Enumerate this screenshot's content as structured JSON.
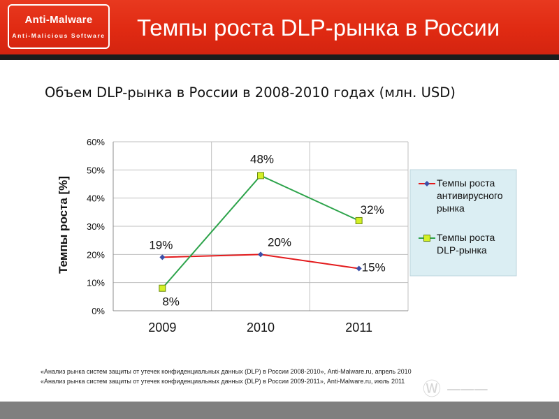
{
  "header": {
    "logo_main": "Anti-Malware",
    "logo_sub": "Anti-Malicious Software",
    "title": "Темпы роста DLP-рынка в России",
    "accent_color": "#e2301a"
  },
  "subtitle": "Объем DLP-рынка в России в 2008-2010 годах (млн. USD)",
  "chart_data": {
    "type": "line",
    "categories": [
      "2009",
      "2010",
      "2011"
    ],
    "ylabel": "Темпы роста [%]",
    "ylim": [
      0,
      60
    ],
    "yticks": [
      "0%",
      "10%",
      "20%",
      "30%",
      "40%",
      "50%",
      "60%"
    ],
    "grid": true,
    "legend_placement": "right",
    "series": [
      {
        "name": "Темпы роста антивирусного рынка",
        "legend_lines": [
          "Темпы роста",
          "антивирусного",
          "рынка"
        ],
        "values": [
          19,
          20,
          15
        ],
        "labels": [
          "19%",
          "20%",
          "15%"
        ],
        "color": "#e31a1c",
        "marker": "diamond",
        "marker_color": "#3b4fa8"
      },
      {
        "name": "Темпы роста DLP-рынка",
        "legend_lines": [
          "Темпы роста",
          "DLP-рынка"
        ],
        "values": [
          8,
          48,
          32
        ],
        "labels": [
          "8%",
          "48%",
          "32%"
        ],
        "color": "#2ca34a",
        "marker": "square",
        "marker_color": "#d4f026"
      }
    ]
  },
  "footnotes": [
    "«Анализ рынка систем защиты от утечек конфиденциальных данных (DLP) в России 2008-2010»,  Anti-Malware.ru,  апрель 2010",
    "«Анализ рынка систем защиты от утечек конфиденциальных данных (DLP) в России 2009-2011»,  Anti-Malware.ru,  июль 2011"
  ]
}
